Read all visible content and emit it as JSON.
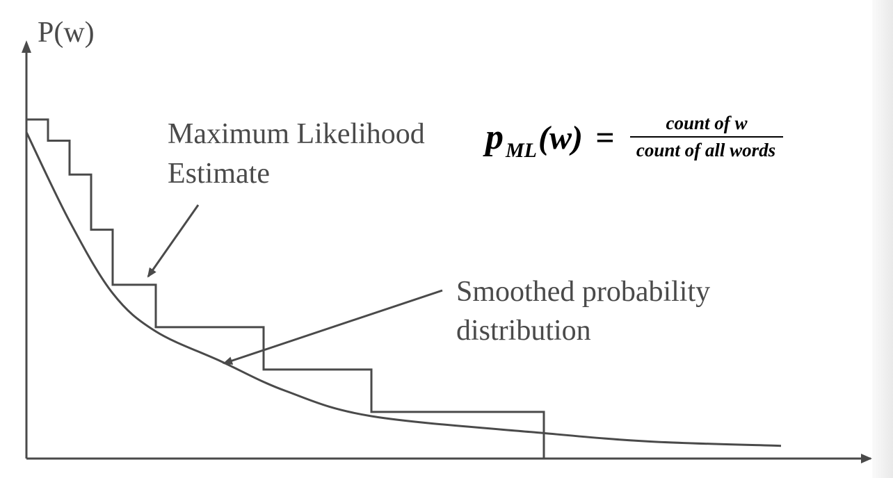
{
  "y_axis_label": "P(w)",
  "annotations": {
    "mle_line1": "Maximum Likelihood",
    "mle_line2": "Estimate",
    "smoothed_line1": "Smoothed probability",
    "smoothed_line2": "distribution"
  },
  "formula": {
    "p": "p",
    "subscript": "ML",
    "argument": "(w)",
    "equals": "=",
    "numerator": "count of w",
    "denominator": "count of all words"
  },
  "chart_data": {
    "type": "line",
    "title": "",
    "xlabel": "",
    "ylabel": "P(w)",
    "xlim": [
      0,
      36
    ],
    "ylim": [
      0,
      1
    ],
    "series": [
      {
        "name": "Maximum Likelihood Estimate",
        "style": "step",
        "x": [
          0,
          1,
          2,
          3,
          4,
          6,
          11,
          16,
          24,
          36
        ],
        "values": [
          0.8,
          0.75,
          0.67,
          0.54,
          0.41,
          0.31,
          0.21,
          0.11,
          0.0,
          0.0
        ]
      },
      {
        "name": "Smoothed probability distribution",
        "style": "curve",
        "x": [
          0,
          2,
          4,
          6,
          9,
          12,
          16,
          24,
          29,
          35
        ],
        "values": [
          0.77,
          0.56,
          0.39,
          0.3,
          0.23,
          0.16,
          0.1,
          0.06,
          0.04,
          0.03
        ]
      }
    ]
  },
  "colors": {
    "ink": "#4a4a4a",
    "formula": "#000000"
  }
}
